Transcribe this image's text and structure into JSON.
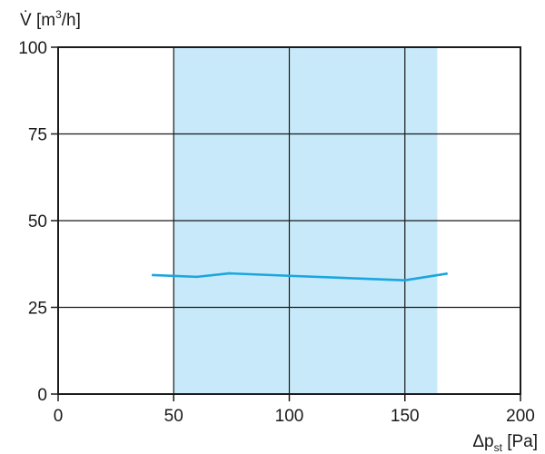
{
  "chart_data": {
    "type": "line",
    "title": "",
    "ylabel": {
      "prefix": "V̇ [m",
      "sup": "3",
      "suffix": "/h]"
    },
    "xlabel": {
      "prefix": "Δp",
      "sub": "st",
      "suffix": " [Pa]"
    },
    "xlim": [
      0,
      200
    ],
    "ylim": [
      0,
      100
    ],
    "x_ticks": [
      0,
      50,
      100,
      150,
      200
    ],
    "x_tick_labels": [
      "0",
      "50",
      "100",
      "150",
      "200"
    ],
    "y_ticks": [
      0,
      25,
      50,
      75,
      100
    ],
    "y_tick_labels": [
      "0",
      "25",
      "50",
      "75",
      "100"
    ],
    "grid": true,
    "shaded_region": {
      "x_start": 50,
      "x_end": 164,
      "color": "#c8e9f9"
    },
    "series": [
      {
        "color": "#1aa6e0",
        "x": [
          41,
          60,
          74,
          100,
          150,
          168
        ],
        "y": [
          34.3,
          33.8,
          34.8,
          34.1,
          32.8,
          34.7
        ]
      }
    ]
  }
}
